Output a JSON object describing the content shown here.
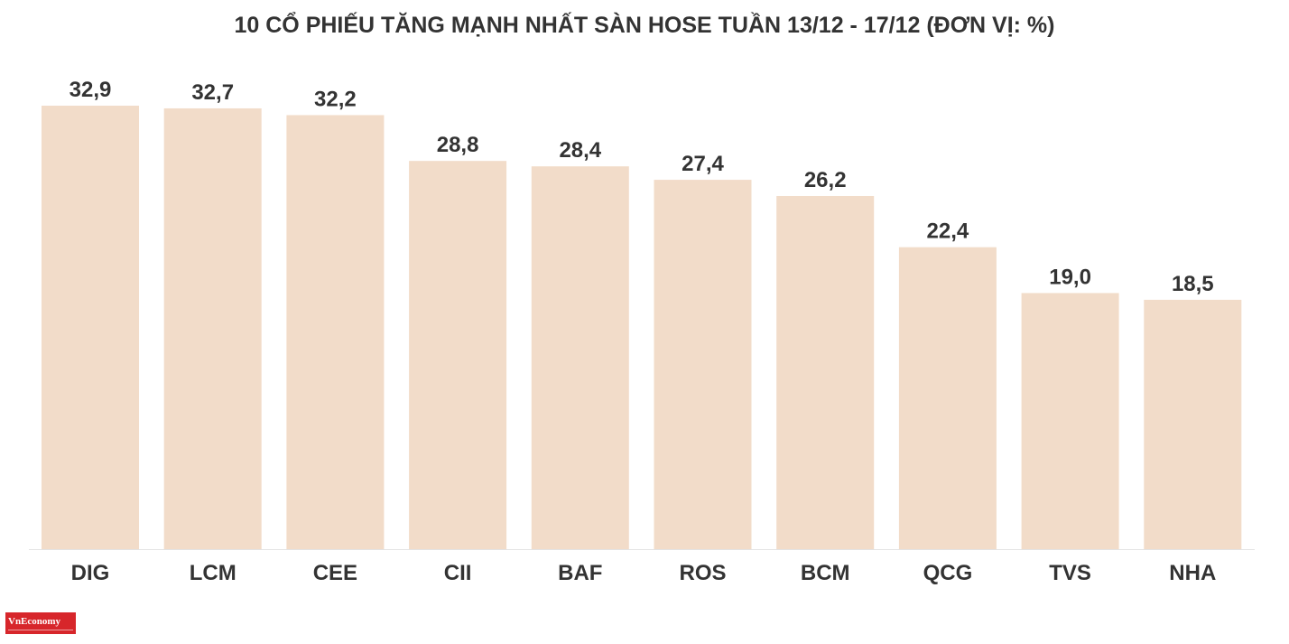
{
  "brand": {
    "logo_text": "VnEconomy"
  },
  "colors": {
    "bar": "#f2dcc9",
    "label_text": "#333333",
    "axis": "#e3e3e3",
    "logo_bg": "#d7262b"
  },
  "chart_data": {
    "type": "bar",
    "title": "10 CỔ PHIẾU TĂNG MẠNH NHẤT SÀN HOSE TUẦN 13/12 - 17/12 (ĐƠN VỊ: %)",
    "xlabel": "",
    "ylabel": "",
    "categories": [
      "DIG",
      "LCM",
      "CEE",
      "CII",
      "BAF",
      "ROS",
      "BCM",
      "QCG",
      "TVS",
      "NHA"
    ],
    "values": [
      32.9,
      32.7,
      32.2,
      28.8,
      28.4,
      27.4,
      26.2,
      22.4,
      19.0,
      18.5
    ],
    "value_labels": [
      "32,9",
      "32,7",
      "32,2",
      "28,8",
      "28,4",
      "27,4",
      "26,2",
      "22,4",
      "19,0",
      "18,5"
    ],
    "ylim": [
      0,
      32.9
    ],
    "grid": false,
    "legend": "none"
  }
}
